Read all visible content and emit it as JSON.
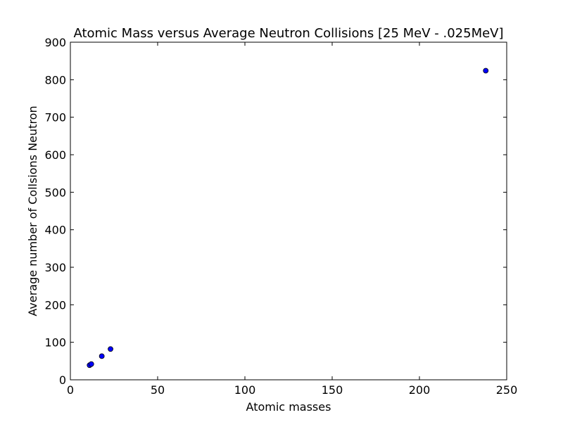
{
  "chart_data": {
    "type": "scatter",
    "title": "Atomic Mass versus Average Neutron Collisions [25 MeV - .025MeV]",
    "xlabel": "Atomic masses",
    "ylabel": "Average number of Collsions Neutron",
    "xlim": [
      0,
      250
    ],
    "ylim": [
      0,
      900
    ],
    "xticks": [
      0,
      50,
      100,
      150,
      200,
      250
    ],
    "yticks": [
      0,
      100,
      200,
      300,
      400,
      500,
      600,
      700,
      800,
      900
    ],
    "grid": false,
    "marker_color": "#0000ff",
    "marker_edge_color": "#000000",
    "points": [
      {
        "x": 11,
        "y": 39
      },
      {
        "x": 12,
        "y": 42
      },
      {
        "x": 18,
        "y": 63
      },
      {
        "x": 23,
        "y": 82
      },
      {
        "x": 238,
        "y": 824
      }
    ]
  }
}
